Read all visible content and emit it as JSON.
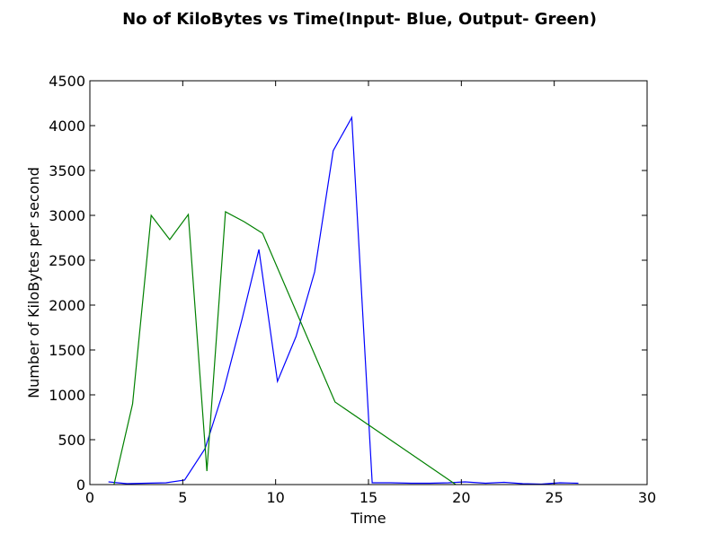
{
  "chart_data": {
    "type": "line",
    "title": "No of KiloBytes vs Time(Input- Blue, Output- Green)",
    "xlabel": "Time",
    "ylabel": "Number of KiloBytes per second",
    "xlim": [
      0,
      30
    ],
    "ylim": [
      0,
      4500
    ],
    "xticks": [
      "0",
      "5",
      "10",
      "15",
      "20",
      "25",
      "30"
    ],
    "yticks": [
      "0",
      "500",
      "1000",
      "1500",
      "2000",
      "2500",
      "3000",
      "3500",
      "4000",
      "4500"
    ],
    "grid": false,
    "legend": false,
    "series": [
      {
        "color": "#0000ff",
        "points": [
          {
            "x": 1.0,
            "y": 30
          },
          {
            "x": 2.0,
            "y": 10
          },
          {
            "x": 3.0,
            "y": 15
          },
          {
            "x": 4.1,
            "y": 20
          },
          {
            "x": 5.1,
            "y": 50
          },
          {
            "x": 6.2,
            "y": 400
          },
          {
            "x": 7.2,
            "y": 1050
          },
          {
            "x": 8.2,
            "y": 1850
          },
          {
            "x": 9.1,
            "y": 2620
          },
          {
            "x": 10.1,
            "y": 1150
          },
          {
            "x": 11.1,
            "y": 1650
          },
          {
            "x": 12.1,
            "y": 2370
          },
          {
            "x": 13.1,
            "y": 3720
          },
          {
            "x": 14.1,
            "y": 4090
          },
          {
            "x": 15.2,
            "y": 20
          },
          {
            "x": 16.2,
            "y": 20
          },
          {
            "x": 17.3,
            "y": 15
          },
          {
            "x": 18.3,
            "y": 15
          },
          {
            "x": 19.3,
            "y": 20
          },
          {
            "x": 20.2,
            "y": 30
          },
          {
            "x": 21.3,
            "y": 15
          },
          {
            "x": 22.3,
            "y": 25
          },
          {
            "x": 23.3,
            "y": 10
          },
          {
            "x": 24.3,
            "y": 5
          },
          {
            "x": 25.3,
            "y": 20
          },
          {
            "x": 26.3,
            "y": 15
          }
        ]
      },
      {
        "color": "#008000",
        "points": [
          {
            "x": 1.3,
            "y": 0
          },
          {
            "x": 2.3,
            "y": 900
          },
          {
            "x": 3.3,
            "y": 3000
          },
          {
            "x": 4.3,
            "y": 2730
          },
          {
            "x": 5.3,
            "y": 3010
          },
          {
            "x": 6.3,
            "y": 150
          },
          {
            "x": 7.3,
            "y": 3040
          },
          {
            "x": 8.3,
            "y": 2930
          },
          {
            "x": 9.3,
            "y": 2800
          },
          {
            "x": 13.2,
            "y": 920
          },
          {
            "x": 19.7,
            "y": 0
          }
        ]
      }
    ]
  }
}
